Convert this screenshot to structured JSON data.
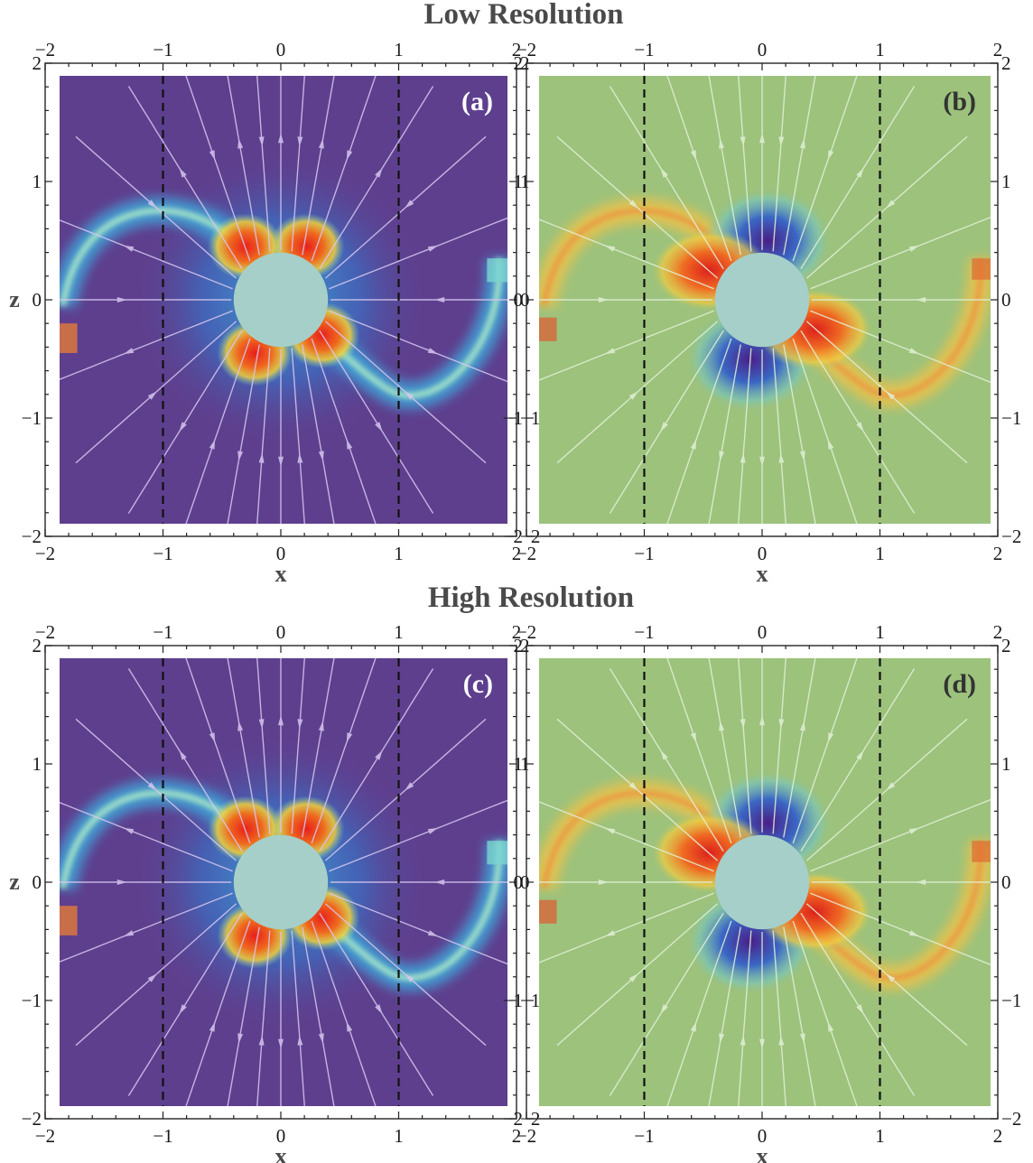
{
  "figure": {
    "row_titles": [
      "Low Resolution",
      "High Resolution"
    ]
  },
  "colors": {
    "circle": "#a6cfc9",
    "purple_bg": "#5e3f8e",
    "green_bg": "#9cc27c",
    "guide_line": "#111111",
    "frame": "#333333"
  },
  "chart_data": [
    {
      "type": "heatmap",
      "panel": "a",
      "label": "(a)",
      "label_color": "#ffffff",
      "row": "Low Resolution",
      "colormap": "purple",
      "title": "Low Resolution",
      "xlabel": "x",
      "ylabel": "z",
      "xlim": [
        -2,
        2
      ],
      "ylim": [
        -2,
        2
      ],
      "xticks": [
        -2,
        -1,
        0,
        1,
        2
      ],
      "yticks": [
        -2,
        -1,
        0,
        1,
        2
      ],
      "guide_lines_x": [
        -1,
        1
      ],
      "inner_radius": 0.4
    },
    {
      "type": "heatmap",
      "panel": "b",
      "label": "(b)",
      "label_color": "#333333",
      "row": "Low Resolution",
      "colormap": "green",
      "title": "Low Resolution",
      "xlabel": "x",
      "ylabel": "",
      "xlim": [
        -2,
        2
      ],
      "ylim": [
        -2,
        2
      ],
      "xticks": [
        -2,
        -1,
        0,
        1,
        2
      ],
      "yticks": [
        -2,
        -1,
        0,
        1,
        2
      ],
      "guide_lines_x": [
        -1,
        1
      ],
      "inner_radius": 0.4
    },
    {
      "type": "heatmap",
      "panel": "c",
      "label": "(c)",
      "label_color": "#ffffff",
      "row": "High Resolution",
      "colormap": "purple",
      "title": "High Resolution",
      "xlabel": "x",
      "ylabel": "z",
      "xlim": [
        -2,
        2
      ],
      "ylim": [
        -2,
        2
      ],
      "xticks": [
        -2,
        -1,
        0,
        1,
        2
      ],
      "yticks": [
        -2,
        -1,
        0,
        1,
        2
      ],
      "guide_lines_x": [
        -1,
        1
      ],
      "inner_radius": 0.4
    },
    {
      "type": "heatmap",
      "panel": "d",
      "label": "(d)",
      "label_color": "#333333",
      "row": "High Resolution",
      "colormap": "green",
      "title": "High Resolution",
      "xlabel": "x",
      "ylabel": "",
      "xlim": [
        -2,
        2
      ],
      "ylim": [
        -2,
        2
      ],
      "xticks": [
        -2,
        -1,
        0,
        1,
        2
      ],
      "yticks": [
        -2,
        -1,
        0,
        1,
        2
      ],
      "guide_lines_x": [
        -1,
        1
      ],
      "inner_radius": 0.4
    }
  ]
}
